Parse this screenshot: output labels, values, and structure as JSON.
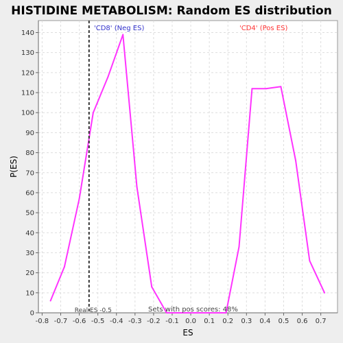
{
  "chart_data": {
    "type": "line",
    "title": "HISTIDINE METABOLISM: Random ES distribution",
    "xlabel": "ES",
    "ylabel": "P(ES)",
    "xlim": [
      -0.82,
      0.79
    ],
    "ylim": [
      0,
      146
    ],
    "x_ticks": [
      -0.8,
      -0.7,
      -0.6,
      -0.5,
      -0.4,
      -0.3,
      -0.2,
      -0.1,
      0.0,
      0.1,
      0.2,
      0.3,
      0.4,
      0.5,
      0.6,
      0.7
    ],
    "x_tick_labels": [
      "-0.8",
      "-0.7",
      "-0.6",
      "-0.5",
      "-0.4",
      "-0.3",
      "-0.2",
      "-0.1",
      "0.0",
      "0.1",
      "0.2",
      "0.3",
      "0.4",
      "0.5",
      "0.6",
      "0.7"
    ],
    "y_ticks": [
      0,
      10,
      20,
      30,
      40,
      50,
      60,
      70,
      80,
      90,
      100,
      110,
      120,
      130,
      140
    ],
    "y_tick_labels": [
      "0",
      "10",
      "20",
      "30",
      "40",
      "50",
      "60",
      "70",
      "80",
      "90",
      "100",
      "110",
      "120",
      "130",
      "140"
    ],
    "grid": true,
    "series": [
      {
        "color": "#ff33ff",
        "x": [
          -0.755,
          -0.68,
          -0.6,
          -0.525,
          -0.445,
          -0.365,
          -0.29,
          -0.21,
          -0.13,
          -0.05,
          0.03,
          0.11,
          0.19,
          0.26,
          0.33,
          0.405,
          0.485,
          0.565,
          0.64,
          0.72
        ],
        "y": [
          6,
          23,
          57,
          100,
          118,
          139,
          63,
          13,
          0,
          0,
          0,
          0,
          0,
          33,
          112,
          112,
          113,
          76,
          26,
          10
        ]
      }
    ],
    "real_es": {
      "x": -0.5475,
      "label": "Real ES -0.5",
      "color": "#333333"
    },
    "annotations": {
      "neg_label": "'CD8' (Neg ES)",
      "neg_color": "#3333cc",
      "pos_label": "'CD4' (Pos ES)",
      "pos_color": "#ff3333",
      "pos_scores_label": "Sets with pos scores: 48%"
    }
  }
}
